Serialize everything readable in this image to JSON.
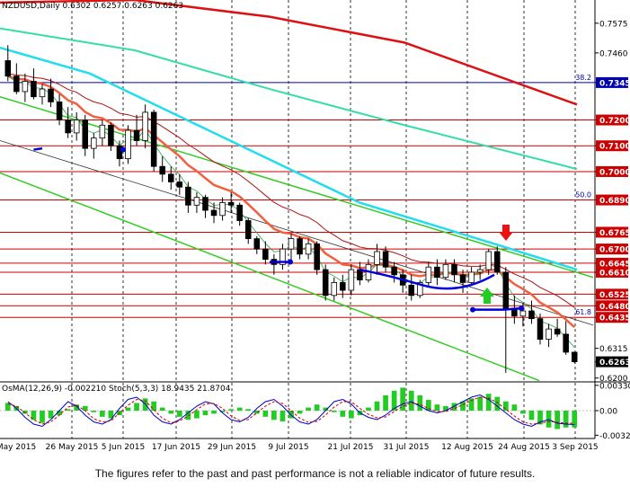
{
  "header": {
    "title": "NZDUSD,Daily  0.6302 0.6257 0.6263 0.6263"
  },
  "indicator_header": "OsMA(12,26,9) -0.002210  Stoch(5,3,3) 18.9435 21.8704",
  "footer": {
    "disclaimer": "The figures refer to the past and past performance is not a reliable indicator of future results."
  },
  "chart_data": [
    {
      "type": "candlestick",
      "title": "NZDUSD,Daily",
      "ohlc_header": "0.6302 0.6257 0.6263 0.6263",
      "y_ticks": [
        "0.7575",
        "0.7460",
        "0.7345",
        "0.7200",
        "0.7100",
        "0.7000",
        "0.6890",
        "0.6765",
        "0.6700",
        "0.6645",
        "0.6610",
        "0.6525",
        "0.6480",
        "0.6435",
        "0.6315",
        "0.6263",
        "0.6200"
      ],
      "ylim": [
        0.6185,
        0.7665
      ],
      "x_ticks": [
        "May 2015",
        "26 May 2015",
        "5 Jun 2015",
        "17 Jun 2015",
        "29 Jun 2015",
        "9 Jul 2015",
        "21 Jul 2015",
        "31 Jul 2015",
        "12 Aug 2015",
        "24 Aug 2015",
        "3 Sep 2015"
      ],
      "horizontal_levels": [
        {
          "value": 0.7345,
          "color": "#0000aa",
          "tag": "38.2"
        },
        {
          "value": 0.72,
          "color": "#cc0000"
        },
        {
          "value": 0.71,
          "color": "#cc0000"
        },
        {
          "value": 0.7,
          "color": "#cc0000"
        },
        {
          "value": 0.689,
          "color": "#cc0000",
          "tag": "50.0"
        },
        {
          "value": 0.6765,
          "color": "#cc0000"
        },
        {
          "value": 0.67,
          "color": "#cc0000"
        },
        {
          "value": 0.6645,
          "color": "#cc0000"
        },
        {
          "value": 0.661,
          "color": "#cc0000"
        },
        {
          "value": 0.6525,
          "color": "#cc0000"
        },
        {
          "value": 0.648,
          "color": "#cc0000"
        },
        {
          "value": 0.6435,
          "color": "#cc0000",
          "tag": "61.8"
        }
      ],
      "current_price": "0.6263",
      "colors": {
        "bull": "#ffffff",
        "bear": "#000000",
        "ma_red": "#dd1111",
        "ma_cyan": "#22ddee",
        "ma_teal": "#33ddaa",
        "ma_orange": "#f06040",
        "channel_green": "#33cc22",
        "signal_blue": "#0000dd",
        "arrow_down": "#ee1111",
        "arrow_up": "#22cc22"
      },
      "candles": [
        [
          0.743,
          0.749,
          0.735,
          0.737
        ],
        [
          0.737,
          0.742,
          0.73,
          0.731
        ],
        [
          0.731,
          0.738,
          0.727,
          0.735
        ],
        [
          0.735,
          0.74,
          0.728,
          0.729
        ],
        [
          0.729,
          0.734,
          0.726,
          0.732
        ],
        [
          0.732,
          0.736,
          0.725,
          0.727
        ],
        [
          0.727,
          0.73,
          0.718,
          0.72
        ],
        [
          0.72,
          0.725,
          0.713,
          0.715
        ],
        [
          0.715,
          0.723,
          0.712,
          0.72
        ],
        [
          0.72,
          0.722,
          0.706,
          0.709
        ],
        [
          0.709,
          0.715,
          0.705,
          0.713
        ],
        [
          0.713,
          0.72,
          0.71,
          0.718
        ],
        [
          0.718,
          0.719,
          0.708,
          0.71
        ],
        [
          0.71,
          0.712,
          0.702,
          0.705
        ],
        [
          0.705,
          0.718,
          0.703,
          0.716
        ],
        [
          0.716,
          0.722,
          0.71,
          0.712
        ],
        [
          0.712,
          0.726,
          0.709,
          0.723
        ],
        [
          0.723,
          0.724,
          0.7,
          0.702
        ],
        [
          0.702,
          0.706,
          0.696,
          0.699
        ],
        [
          0.699,
          0.702,
          0.693,
          0.696
        ],
        [
          0.696,
          0.699,
          0.691,
          0.694
        ],
        [
          0.694,
          0.696,
          0.684,
          0.687
        ],
        [
          0.687,
          0.692,
          0.684,
          0.69
        ],
        [
          0.69,
          0.691,
          0.682,
          0.685
        ],
        [
          0.685,
          0.688,
          0.68,
          0.683
        ],
        [
          0.683,
          0.69,
          0.681,
          0.688
        ],
        [
          0.688,
          0.692,
          0.684,
          0.687
        ],
        [
          0.687,
          0.688,
          0.679,
          0.681
        ],
        [
          0.681,
          0.682,
          0.672,
          0.674
        ],
        [
          0.674,
          0.675,
          0.668,
          0.67
        ],
        [
          0.67,
          0.673,
          0.664,
          0.666
        ],
        [
          0.666,
          0.668,
          0.66,
          0.664
        ],
        [
          0.664,
          0.672,
          0.662,
          0.67
        ],
        [
          0.67,
          0.676,
          0.665,
          0.674
        ],
        [
          0.674,
          0.675,
          0.666,
          0.668
        ],
        [
          0.668,
          0.674,
          0.666,
          0.672
        ],
        [
          0.672,
          0.673,
          0.66,
          0.662
        ],
        [
          0.662,
          0.664,
          0.65,
          0.652
        ],
        [
          0.652,
          0.659,
          0.65,
          0.657
        ],
        [
          0.657,
          0.66,
          0.651,
          0.654
        ],
        [
          0.654,
          0.664,
          0.652,
          0.662
        ],
        [
          0.662,
          0.665,
          0.656,
          0.658
        ],
        [
          0.658,
          0.666,
          0.657,
          0.664
        ],
        [
          0.664,
          0.672,
          0.66,
          0.669
        ],
        [
          0.669,
          0.671,
          0.661,
          0.663
        ],
        [
          0.663,
          0.665,
          0.657,
          0.66
        ],
        [
          0.66,
          0.662,
          0.653,
          0.656
        ],
        [
          0.656,
          0.66,
          0.65,
          0.652
        ],
        [
          0.652,
          0.658,
          0.651,
          0.657
        ],
        [
          0.657,
          0.665,
          0.655,
          0.663
        ],
        [
          0.663,
          0.666,
          0.656,
          0.659
        ],
        [
          0.659,
          0.666,
          0.658,
          0.664
        ],
        [
          0.664,
          0.666,
          0.657,
          0.66
        ],
        [
          0.66,
          0.662,
          0.653,
          0.657
        ],
        [
          0.657,
          0.663,
          0.656,
          0.661
        ],
        [
          0.661,
          0.664,
          0.658,
          0.662
        ],
        [
          0.662,
          0.67,
          0.66,
          0.669
        ],
        [
          0.669,
          0.671,
          0.66,
          0.661
        ],
        [
          0.661,
          0.663,
          0.622,
          0.647
        ],
        [
          0.647,
          0.652,
          0.641,
          0.644
        ],
        [
          0.644,
          0.649,
          0.64,
          0.646
        ],
        [
          0.646,
          0.65,
          0.641,
          0.643
        ],
        [
          0.643,
          0.645,
          0.633,
          0.635
        ],
        [
          0.635,
          0.641,
          0.632,
          0.639
        ],
        [
          0.639,
          0.643,
          0.636,
          0.637
        ],
        [
          0.637,
          0.642,
          0.629,
          0.63
        ],
        [
          0.63,
          0.6302,
          0.6257,
          0.6263
        ]
      ]
    },
    {
      "type": "bar",
      "title": "OsMA(12,26,9) Stoch(5,3,3)",
      "osma_value": "-0.002210",
      "stoch_values": [
        "18.9435",
        "21.8704"
      ],
      "y_ticks": [
        "0.003300",
        "0.00",
        "-0.003211"
      ],
      "ylim": [
        -0.0034,
        0.0034
      ],
      "values": [
        0.001,
        0.0006,
        -0.0004,
        -0.0012,
        -0.0016,
        -0.001,
        -0.0006,
        0.0002,
        0.0008,
        0.0006,
        -0.0002,
        -0.0008,
        -0.001,
        -0.0006,
        0.0004,
        0.001,
        0.0016,
        0.0012,
        0.0004,
        -0.0004,
        -0.0008,
        -0.0012,
        -0.001,
        -0.0006,
        -0.0004,
        -0.0002,
        0.0002,
        0.0004,
        0.0002,
        -0.0004,
        -0.0008,
        -0.0012,
        -0.0014,
        -0.001,
        -0.0004,
        0.0004,
        0.0008,
        0.0004,
        -0.0002,
        -0.0008,
        -0.001,
        -0.0006,
        0.0004,
        0.0012,
        0.002,
        0.0026,
        0.003,
        0.0026,
        0.002,
        0.0014,
        0.0008,
        0.0006,
        0.001,
        0.0012,
        0.0016,
        0.0018,
        0.0022,
        0.0018,
        0.0012,
        0.0008,
        -0.0004,
        -0.0012,
        -0.0018,
        -0.0022,
        -0.0024,
        -0.0022,
        -0.0022
      ],
      "stoch_main": [
        70,
        55,
        35,
        20,
        15,
        30,
        50,
        70,
        60,
        40,
        25,
        20,
        30,
        55,
        75,
        80,
        65,
        40,
        25,
        20,
        30,
        45,
        60,
        70,
        65,
        45,
        30,
        25,
        35,
        55,
        70,
        75,
        60,
        40,
        25,
        20,
        30,
        50,
        70,
        75,
        65,
        45,
        35,
        30,
        40,
        55,
        65,
        70,
        60,
        50,
        45,
        50,
        60,
        70,
        80,
        85,
        75,
        60,
        45,
        30,
        20,
        15,
        25,
        30,
        22,
        20,
        19
      ],
      "stoch_signal": [
        65,
        60,
        45,
        30,
        20,
        25,
        40,
        58,
        62,
        50,
        32,
        25,
        27,
        45,
        62,
        75,
        72,
        52,
        33,
        23,
        27,
        38,
        52,
        65,
        66,
        55,
        38,
        28,
        30,
        45,
        60,
        70,
        66,
        50,
        33,
        24,
        26,
        40,
        58,
        70,
        70,
        55,
        42,
        34,
        36,
        48,
        60,
        67,
        64,
        55,
        48,
        48,
        55,
        63,
        73,
        80,
        78,
        68,
        53,
        38,
        25,
        20,
        22,
        26,
        24,
        22,
        21.87
      ]
    }
  ]
}
